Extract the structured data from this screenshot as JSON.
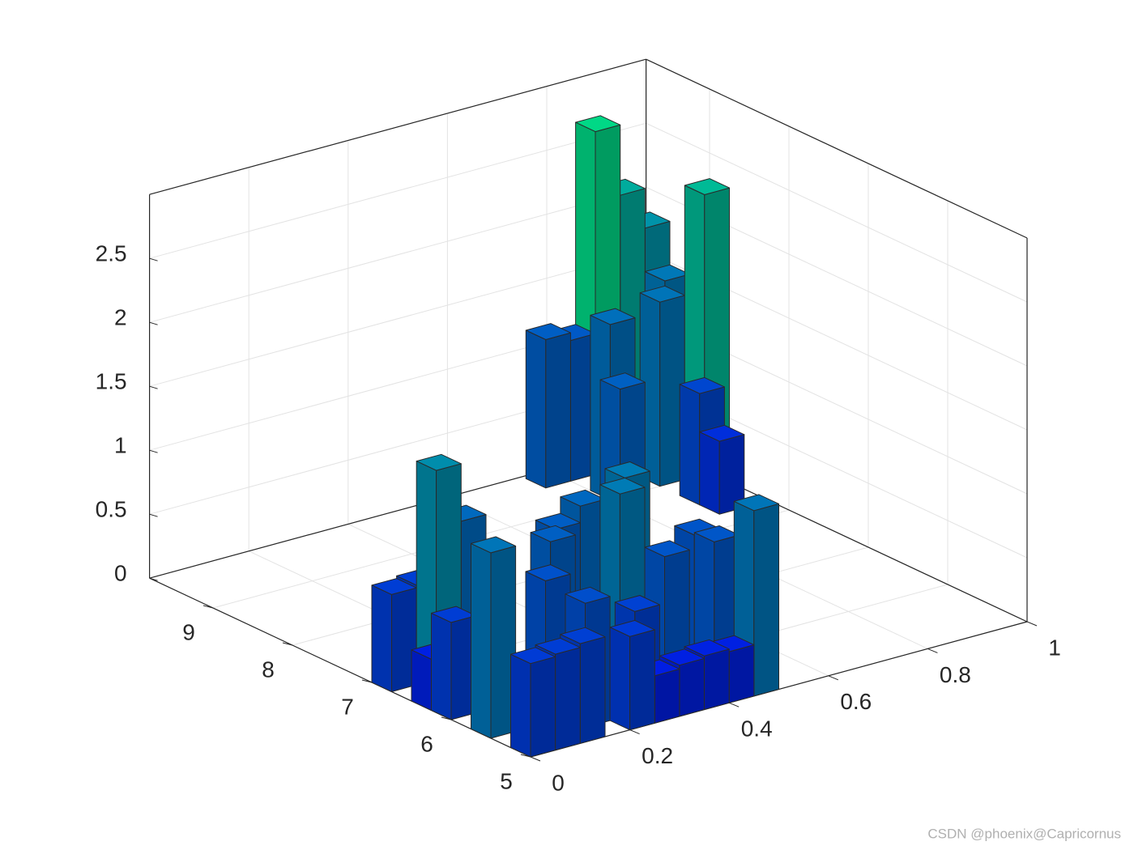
{
  "chart_data": {
    "type": "bar3",
    "x": [
      0.025,
      0.075,
      0.125,
      0.025,
      0.025,
      0.075,
      0.025,
      0.025,
      0.075,
      0.125,
      0.225,
      0.275,
      0.325,
      0.375,
      0.425,
      0.475,
      0.375,
      0.325,
      0.375,
      0.475,
      0.475,
      0.325,
      0.275,
      0.225,
      0.175,
      0.175,
      0.125,
      0.275,
      0.775,
      0.825,
      0.875,
      0.925,
      0.975,
      0.975,
      0.925,
      0.825,
      0.725,
      0.975,
      0.925,
      0.925
    ],
    "y": [
      6.875,
      6.875,
      6.875,
      6.125,
      6.375,
      6.625,
      5.625,
      5.125,
      5.125,
      5.125,
      5.125,
      5.125,
      5.125,
      5.125,
      5.125,
      5.125,
      5.625,
      5.875,
      6.125,
      5.625,
      5.875,
      6.375,
      6.375,
      6.125,
      5.875,
      5.375,
      6.625,
      5.375,
      9.625,
      9.625,
      9.625,
      9.625,
      9.625,
      9.375,
      9.125,
      9.125,
      8.375,
      8.875,
      8.625,
      8.375
    ],
    "values": [
      0.76,
      0.78,
      0.74,
      0.76,
      0.4,
      1.75,
      1.45,
      0.73,
      0.75,
      0.78,
      0.73,
      0.37,
      0.4,
      0.42,
      0.4,
      1.45,
      1.05,
      1.52,
      1.52,
      1.06,
      1.04,
      1.28,
      1.15,
      1.18,
      1.0,
      0.97,
      1.3,
      0.8,
      1.16,
      1.1,
      2.68,
      2.13,
      1.82,
      1.48,
      1.44,
      1.37,
      1.19,
      2.3,
      0.87,
      0.57
    ],
    "xlim": [
      0,
      1
    ],
    "ylim": [
      5,
      9.8
    ],
    "zlim": [
      0,
      3
    ],
    "xticks": [
      0,
      0.2,
      0.4,
      0.6,
      0.8,
      1
    ],
    "yticks": [
      5,
      6,
      7,
      8,
      9
    ],
    "zticks": [
      0,
      0.5,
      1,
      1.5,
      2,
      2.5
    ],
    "colormap": [
      "#0000ff",
      "#00ff80"
    ],
    "grid": true
  },
  "watermark": "CSDN @phoenix@Capricornus"
}
